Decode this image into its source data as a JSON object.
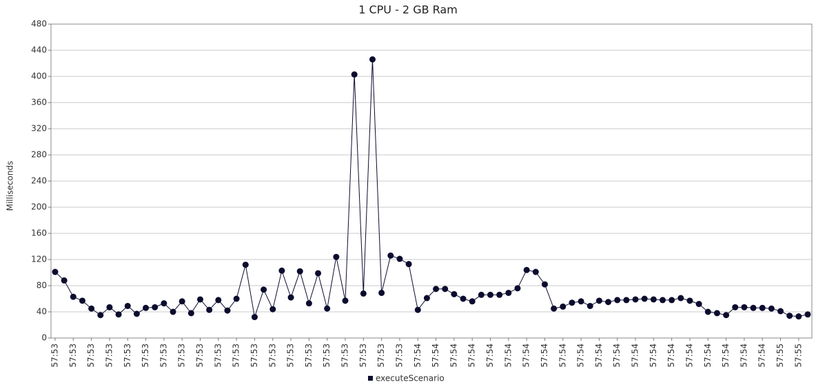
{
  "chart_data": {
    "type": "line",
    "title": "1 CPU - 2 GB Ram",
    "y_label": "Milliseconds",
    "categories": [
      "57:53",
      null,
      "57:53",
      null,
      "57:53",
      null,
      "57:53",
      null,
      "57:53",
      null,
      "57:53",
      null,
      "57:53",
      null,
      "57:53",
      null,
      "57:53",
      null,
      "57:53",
      null,
      "57:53",
      null,
      "57:53",
      null,
      "57:53",
      null,
      "57:53",
      null,
      "57:53",
      null,
      "57:53",
      null,
      "57:53",
      null,
      "57:53",
      null,
      "57:53",
      null,
      "57:53",
      null,
      "57:54",
      null,
      "57:54",
      null,
      "57:54",
      null,
      "57:54",
      null,
      "57:54",
      null,
      "57:54",
      null,
      "57:54",
      null,
      "57:54",
      null,
      "57:54",
      null,
      "57:54",
      null,
      "57:54",
      null,
      "57:54",
      null,
      "57:54",
      null,
      "57:54",
      null,
      "57:54",
      null,
      "57:54",
      null,
      "57:54",
      null,
      "57:54",
      null,
      "57:54",
      null,
      "57:54",
      null,
      "57:55",
      null,
      "57:55",
      null
    ],
    "series": [
      {
        "name": "executeScenario",
        "color": "#0b0b2e",
        "values": [
          101,
          88,
          63,
          57,
          45,
          35,
          47,
          36,
          49,
          37,
          46,
          47,
          53,
          40,
          56,
          38,
          59,
          43,
          58,
          42,
          60,
          112,
          32,
          74,
          44,
          103,
          62,
          102,
          53,
          99,
          45,
          124,
          57,
          403,
          68,
          426,
          69,
          126,
          121,
          113,
          43,
          61,
          75,
          75,
          67,
          60,
          56,
          66,
          66,
          66,
          69,
          76,
          104,
          101,
          82,
          45,
          48,
          54,
          56,
          49,
          57,
          55,
          58,
          58,
          59,
          60,
          59,
          58,
          58,
          61,
          57,
          52,
          40,
          38,
          35,
          47,
          47,
          46,
          46,
          45,
          41,
          34,
          33,
          36
        ]
      }
    ],
    "ylim": [
      0,
      480
    ],
    "yticks": [
      0,
      40,
      80,
      120,
      160,
      200,
      240,
      280,
      320,
      360,
      400,
      440,
      480
    ],
    "grid": true,
    "legend": "bottom"
  }
}
